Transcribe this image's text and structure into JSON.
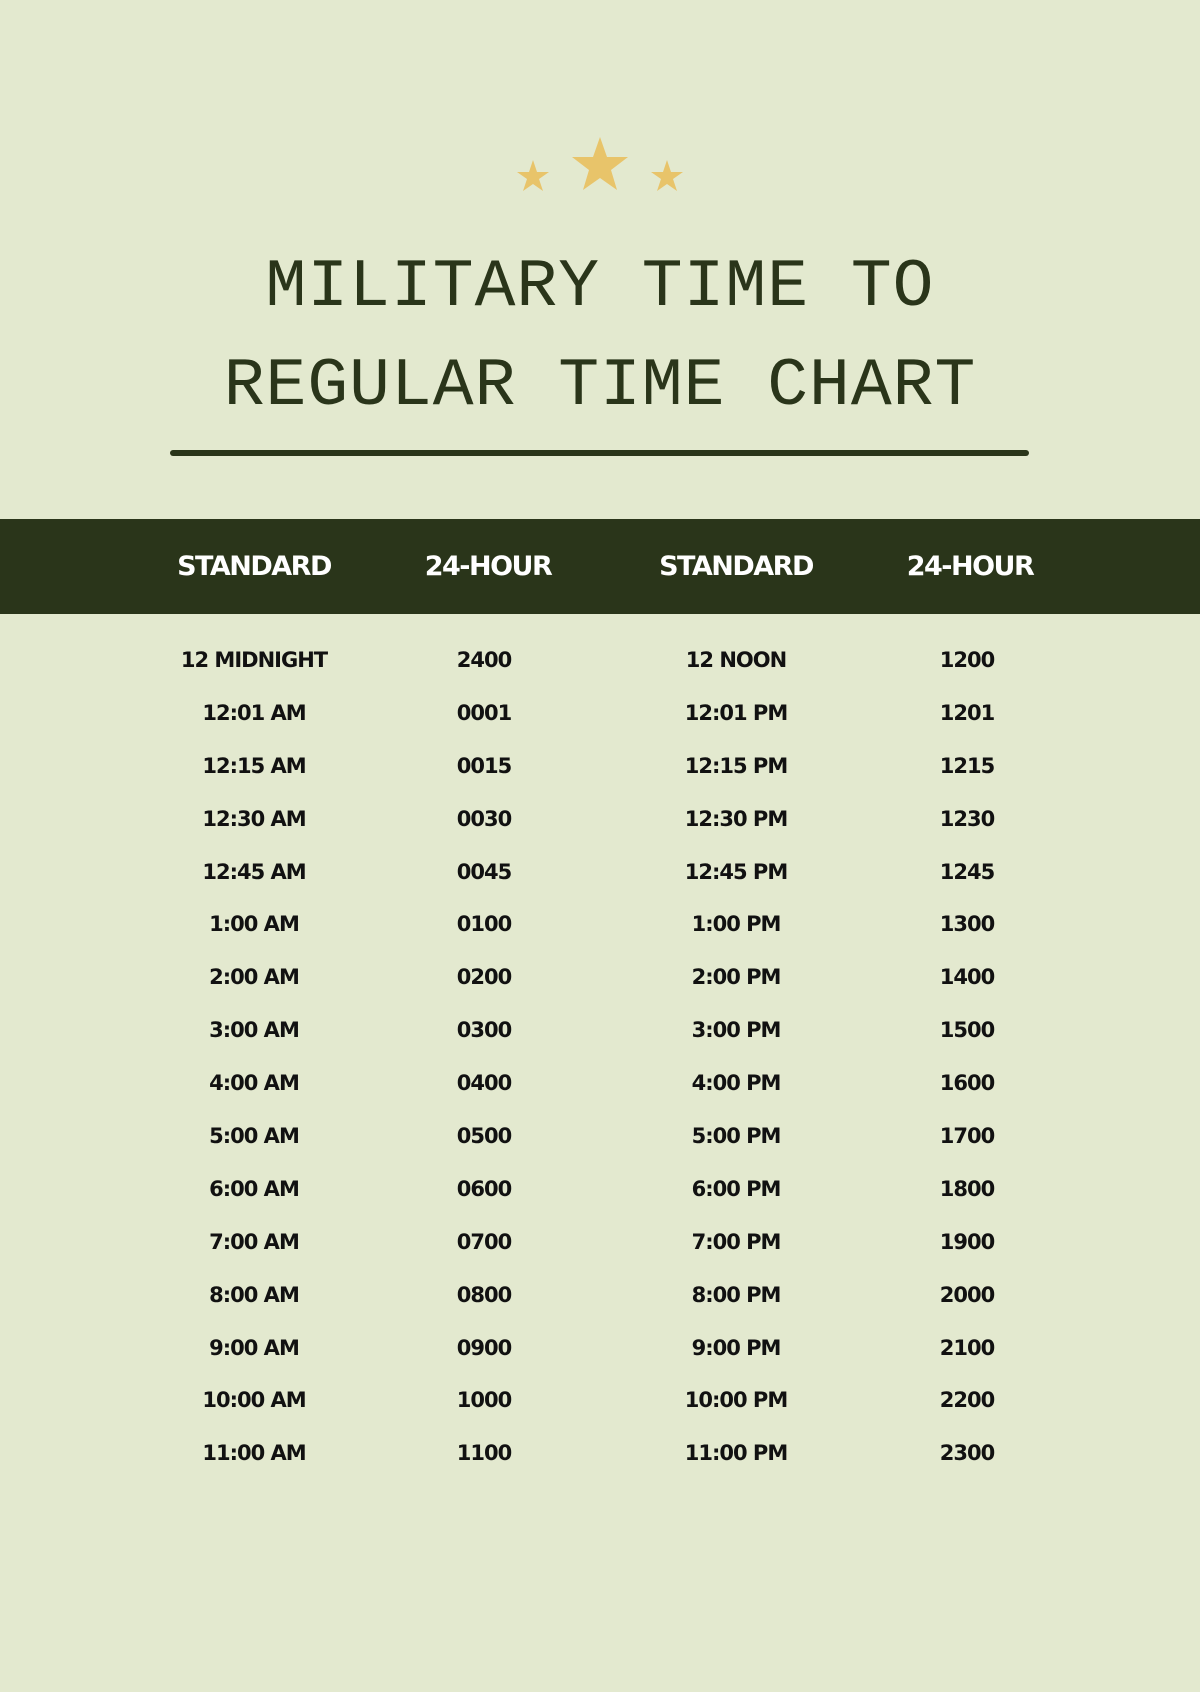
{
  "title": {
    "line1": "MILITARY TIME TO",
    "line2": "REGULAR TIME CHART"
  },
  "colors": {
    "background": "#e3e9cf",
    "dark_green": "#2a351a",
    "star": "#e8c46a"
  },
  "decoration": {
    "icon": "star-icon",
    "count": 3
  },
  "table": {
    "headers": [
      "STANDARD",
      "24-HOUR",
      "STANDARD",
      "24-HOUR"
    ],
    "rows": [
      [
        "12 MIDNIGHT",
        "2400",
        "12 NOON",
        "1200"
      ],
      [
        "12:01 AM",
        "0001",
        "12:01 PM",
        "1201"
      ],
      [
        "12:15 AM",
        "0015",
        "12:15 PM",
        "1215"
      ],
      [
        "12:30 AM",
        "0030",
        "12:30 PM",
        "1230"
      ],
      [
        "12:45 AM",
        "0045",
        "12:45 PM",
        "1245"
      ],
      [
        "1:00 AM",
        "0100",
        "1:00 PM",
        "1300"
      ],
      [
        "2:00 AM",
        "0200",
        "2:00 PM",
        "1400"
      ],
      [
        "3:00 AM",
        "0300",
        "3:00 PM",
        "1500"
      ],
      [
        "4:00 AM",
        "0400",
        "4:00 PM",
        "1600"
      ],
      [
        "5:00 AM",
        "0500",
        "5:00 PM",
        "1700"
      ],
      [
        "6:00 AM",
        "0600",
        "6:00 PM",
        "1800"
      ],
      [
        "7:00 AM",
        "0700",
        "7:00 PM",
        "1900"
      ],
      [
        "8:00 AM",
        "0800",
        "8:00 PM",
        "2000"
      ],
      [
        "9:00 AM",
        "0900",
        "9:00 PM",
        "2100"
      ],
      [
        "10:00 AM",
        "1000",
        "10:00 PM",
        "2200"
      ],
      [
        "11:00 AM",
        "1100",
        "11:00 PM",
        "2300"
      ]
    ]
  }
}
